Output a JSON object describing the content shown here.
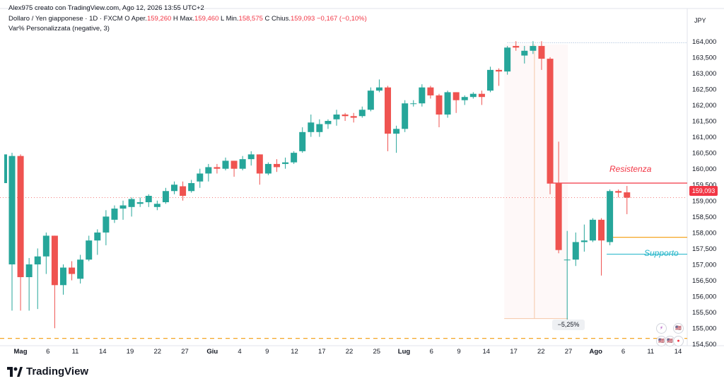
{
  "header": {
    "author_line": "Alex975 creato con TradingView.com, Ago 12, 2026 13:55 UTC+2",
    "symbol": "Dollaro / Yen giapponese · 1D · FXCM",
    "open_label": "O",
    "open_text": "Aper.",
    "open_value": "159,260",
    "high_label": "H",
    "high_text": "Max.",
    "high_value": "159,460",
    "low_label": "L",
    "low_text": "Min.",
    "low_value": "158,575",
    "close_label": "C",
    "close_text": "Chius.",
    "close_value": "159,093",
    "change": "−0,167 (−0,10%)",
    "indicator": "Var% Personalizzata (negative, 3)"
  },
  "footer": {
    "brand": "TradingView"
  },
  "annotations": {
    "resistance": "Resistenza",
    "support": "Supporto",
    "drop_pct": "−5,25%",
    "last_price": "159,093"
  },
  "colors": {
    "up": "#26a69a",
    "down": "#ef5350",
    "resistance": "#f23645",
    "support": "#22b5c9",
    "level": "#f5a623"
  },
  "chart_data": {
    "type": "candlestick",
    "title": "Dollaro / Yen giapponese · 1D · FXCM",
    "y_unit": "JPY",
    "ylim": [
      154.45,
      164.25
    ],
    "y_ticks": [
      "164,000",
      "163,500",
      "163,000",
      "162,500",
      "162,000",
      "161,500",
      "161,000",
      "160,500",
      "160,000",
      "159,500",
      "159,000",
      "158,500",
      "158,000",
      "157,500",
      "157,000",
      "156,500",
      "156,000",
      "155,500",
      "155,000",
      "154,500"
    ],
    "x_ticks": [
      "Mag",
      "6",
      "11",
      "14",
      "19",
      "22",
      "27",
      "Giu",
      "4",
      "9",
      "12",
      "17",
      "22",
      "25",
      "Lug",
      "6",
      "9",
      "14",
      "17",
      "22",
      "27",
      "Ago",
      "6",
      "11",
      "14"
    ],
    "candles": [
      {
        "o": 157.0,
        "h": 160.5,
        "l": 155.55,
        "c": 160.4
      },
      {
        "o": 160.4,
        "h": 160.45,
        "l": 155.55,
        "c": 156.6
      },
      {
        "o": 156.6,
        "h": 157.2,
        "l": 155.55,
        "c": 157.0
      },
      {
        "o": 157.0,
        "h": 157.5,
        "l": 155.6,
        "c": 157.25
      },
      {
        "o": 157.25,
        "h": 158.0,
        "l": 156.7,
        "c": 157.9
      },
      {
        "o": 157.9,
        "h": 157.9,
        "l": 155.0,
        "c": 156.35
      },
      {
        "o": 156.35,
        "h": 157.0,
        "l": 156.05,
        "c": 156.9
      },
      {
        "o": 156.9,
        "h": 157.1,
        "l": 156.5,
        "c": 156.7
      },
      {
        "o": 156.55,
        "h": 157.3,
        "l": 156.4,
        "c": 157.15
      },
      {
        "o": 157.15,
        "h": 157.9,
        "l": 157.1,
        "c": 157.75
      },
      {
        "o": 157.75,
        "h": 158.1,
        "l": 157.3,
        "c": 158.0
      },
      {
        "o": 158.0,
        "h": 158.7,
        "l": 157.6,
        "c": 158.5
      },
      {
        "o": 158.4,
        "h": 158.85,
        "l": 158.3,
        "c": 158.75
      },
      {
        "o": 158.75,
        "h": 159.0,
        "l": 158.4,
        "c": 158.85
      },
      {
        "o": 158.8,
        "h": 159.1,
        "l": 158.5,
        "c": 159.05
      },
      {
        "o": 158.9,
        "h": 159.1,
        "l": 158.8,
        "c": 158.95
      },
      {
        "o": 158.95,
        "h": 159.2,
        "l": 158.8,
        "c": 159.15
      },
      {
        "o": 158.8,
        "h": 159.0,
        "l": 158.7,
        "c": 158.9
      },
      {
        "o": 158.95,
        "h": 159.4,
        "l": 158.9,
        "c": 159.3
      },
      {
        "o": 159.3,
        "h": 159.6,
        "l": 159.2,
        "c": 159.5
      },
      {
        "o": 159.45,
        "h": 159.6,
        "l": 159.0,
        "c": 159.15
      },
      {
        "o": 159.3,
        "h": 159.65,
        "l": 159.25,
        "c": 159.55
      },
      {
        "o": 159.6,
        "h": 160.0,
        "l": 159.4,
        "c": 159.85
      },
      {
        "o": 159.85,
        "h": 160.15,
        "l": 159.6,
        "c": 160.05
      },
      {
        "o": 160.05,
        "h": 160.15,
        "l": 159.85,
        "c": 160.0
      },
      {
        "o": 160.0,
        "h": 160.35,
        "l": 159.95,
        "c": 160.25
      },
      {
        "o": 160.25,
        "h": 160.25,
        "l": 159.75,
        "c": 160.0
      },
      {
        "o": 160.0,
        "h": 160.4,
        "l": 159.95,
        "c": 160.3
      },
      {
        "o": 160.3,
        "h": 160.55,
        "l": 160.1,
        "c": 160.45
      },
      {
        "o": 160.45,
        "h": 160.45,
        "l": 159.5,
        "c": 159.85
      },
      {
        "o": 159.85,
        "h": 160.2,
        "l": 159.8,
        "c": 160.15
      },
      {
        "o": 160.15,
        "h": 160.3,
        "l": 159.9,
        "c": 160.05
      },
      {
        "o": 160.15,
        "h": 160.35,
        "l": 160.0,
        "c": 160.2
      },
      {
        "o": 160.2,
        "h": 160.55,
        "l": 160.15,
        "c": 160.5
      },
      {
        "o": 160.55,
        "h": 161.3,
        "l": 160.5,
        "c": 161.15
      },
      {
        "o": 161.15,
        "h": 161.7,
        "l": 161.0,
        "c": 161.45
      },
      {
        "o": 161.15,
        "h": 161.55,
        "l": 161.0,
        "c": 161.4
      },
      {
        "o": 161.4,
        "h": 161.55,
        "l": 161.25,
        "c": 161.5
      },
      {
        "o": 161.55,
        "h": 161.85,
        "l": 161.35,
        "c": 161.7
      },
      {
        "o": 161.7,
        "h": 161.75,
        "l": 161.5,
        "c": 161.65
      },
      {
        "o": 161.65,
        "h": 161.75,
        "l": 161.45,
        "c": 161.6
      },
      {
        "o": 161.65,
        "h": 161.95,
        "l": 161.6,
        "c": 161.85
      },
      {
        "o": 161.85,
        "h": 162.55,
        "l": 161.8,
        "c": 162.45
      },
      {
        "o": 162.45,
        "h": 162.8,
        "l": 162.4,
        "c": 162.55
      },
      {
        "o": 162.55,
        "h": 162.6,
        "l": 160.55,
        "c": 161.1
      },
      {
        "o": 161.1,
        "h": 161.35,
        "l": 160.5,
        "c": 161.25
      },
      {
        "o": 161.25,
        "h": 162.15,
        "l": 161.15,
        "c": 162.05
      },
      {
        "o": 162.05,
        "h": 162.15,
        "l": 161.95,
        "c": 162.05
      },
      {
        "o": 162.05,
        "h": 162.65,
        "l": 161.95,
        "c": 162.55
      },
      {
        "o": 162.55,
        "h": 162.6,
        "l": 162.2,
        "c": 162.3
      },
      {
        "o": 162.3,
        "h": 162.35,
        "l": 161.3,
        "c": 161.7
      },
      {
        "o": 161.7,
        "h": 162.45,
        "l": 161.6,
        "c": 162.4
      },
      {
        "o": 162.4,
        "h": 162.4,
        "l": 161.75,
        "c": 162.15
      },
      {
        "o": 162.15,
        "h": 162.3,
        "l": 162.0,
        "c": 162.25
      },
      {
        "o": 162.25,
        "h": 162.4,
        "l": 162.2,
        "c": 162.35
      },
      {
        "o": 162.35,
        "h": 162.45,
        "l": 162.0,
        "c": 162.25
      },
      {
        "o": 162.45,
        "h": 163.2,
        "l": 162.4,
        "c": 163.1
      },
      {
        "o": 163.1,
        "h": 163.15,
        "l": 162.6,
        "c": 163.05
      },
      {
        "o": 163.05,
        "h": 163.85,
        "l": 162.95,
        "c": 163.8
      },
      {
        "o": 163.85,
        "h": 164.0,
        "l": 163.7,
        "c": 163.8
      },
      {
        "o": 163.55,
        "h": 163.85,
        "l": 163.3,
        "c": 163.7
      },
      {
        "o": 163.7,
        "h": 164.0,
        "l": 163.6,
        "c": 163.85
      },
      {
        "o": 163.85,
        "h": 164.0,
        "l": 163.1,
        "c": 163.45
      },
      {
        "o": 163.45,
        "h": 163.5,
        "l": 159.2,
        "c": 159.55
      },
      {
        "o": 159.55,
        "h": 160.85,
        "l": 157.35,
        "c": 157.45
      },
      {
        "o": 157.15,
        "h": 158.05,
        "l": 155.2,
        "c": 157.15
      },
      {
        "o": 157.15,
        "h": 158.0,
        "l": 156.95,
        "c": 157.7
      },
      {
        "o": 157.7,
        "h": 158.25,
        "l": 157.4,
        "c": 157.75
      },
      {
        "o": 157.75,
        "h": 158.45,
        "l": 157.7,
        "c": 158.4
      },
      {
        "o": 158.4,
        "h": 158.45,
        "l": 156.65,
        "c": 157.75
      },
      {
        "o": 157.7,
        "h": 159.35,
        "l": 157.6,
        "c": 159.3
      },
      {
        "o": 159.3,
        "h": 159.35,
        "l": 159.1,
        "c": 159.25
      },
      {
        "o": 159.26,
        "h": 159.46,
        "l": 158.575,
        "c": 159.093
      }
    ],
    "levels": [
      {
        "label": "Resistenza",
        "value": 159.55
      },
      {
        "label": "Supporto",
        "value": 157.32
      },
      {
        "label": "",
        "value": 157.85
      },
      {
        "label": "",
        "value": 154.68
      },
      {
        "label": "",
        "value": 163.95
      }
    ],
    "measure": {
      "label": "−5,25%",
      "from": 163.9,
      "to": 155.3
    },
    "grid": false,
    "legend": "none"
  }
}
